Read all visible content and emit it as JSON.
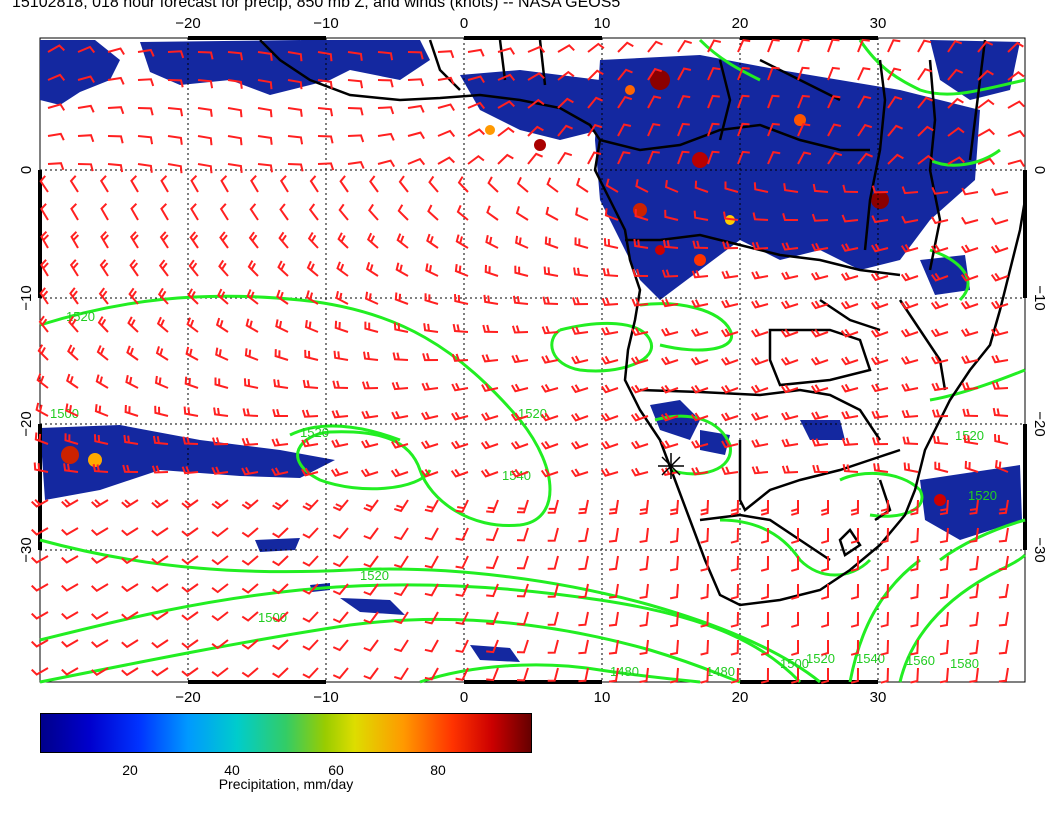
{
  "title": "15102818, 018 hour forecast for precip, 850 mb Z, and winds (knots) -- NASA GEOS5",
  "map": {
    "lon_ticks": [
      "−20",
      "−10",
      "0",
      "10",
      "20",
      "30"
    ],
    "lat_ticks": [
      "0",
      "−10",
      "−20",
      "−30"
    ],
    "contour_labels": [
      "1520",
      "1520",
      "1540",
      "1520",
      "1520",
      "1500",
      "1520",
      "1540",
      "1500",
      "1560",
      "1580",
      "1480",
      "1480",
      "1520",
      "1500",
      "1520"
    ],
    "colors": {
      "wind_barbs": "#ff2020",
      "contours": "#22ee22",
      "coastline": "#000000",
      "precip_base": "#1428a0",
      "grid": "#000000"
    }
  },
  "colorbar": {
    "ticks": [
      "20",
      "40",
      "60",
      "80"
    ],
    "label": "Precipitation, mm/day",
    "colors": [
      "#00008b",
      "#0033ff",
      "#00cccc",
      "#99cc00",
      "#ff9900",
      "#cc0000",
      "#660000"
    ]
  }
}
